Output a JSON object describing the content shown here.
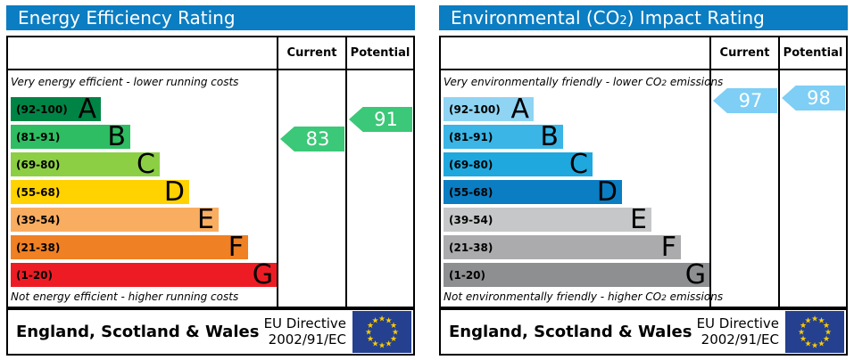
{
  "colors": {
    "header_bg": "#0b7dc2",
    "border": "#000000",
    "flag_navy": "#24408f",
    "star": "#ffcc00"
  },
  "chart_data": [
    {
      "type": "bar",
      "title_parts": {
        "prefix": "Energy Efficiency Rating",
        "sub": "",
        "suffix": ""
      },
      "columns": {
        "current": "Current",
        "potential": "Potential"
      },
      "top_note": {
        "prefix": "Very energy efficient - lower running costs",
        "sub": "",
        "suffix": ""
      },
      "bottom_note": {
        "prefix": "Not energy efficient - higher running costs",
        "sub": "",
        "suffix": ""
      },
      "bands": [
        {
          "letter": "A",
          "range": "(92-100)",
          "min": 92,
          "max": 100,
          "color": "#008445"
        },
        {
          "letter": "B",
          "range": "(81-91)",
          "min": 81,
          "max": 91,
          "color": "#2ebd62"
        },
        {
          "letter": "C",
          "range": "(69-80)",
          "min": 69,
          "max": 80,
          "color": "#8ccf44"
        },
        {
          "letter": "D",
          "range": "(55-68)",
          "min": 55,
          "max": 68,
          "color": "#ffd200"
        },
        {
          "letter": "E",
          "range": "(39-54)",
          "min": 39,
          "max": 54,
          "color": "#f9ad60"
        },
        {
          "letter": "F",
          "range": "(21-38)",
          "min": 21,
          "max": 38,
          "color": "#ef8023"
        },
        {
          "letter": "G",
          "range": "(1-20)",
          "min": 1,
          "max": 20,
          "color": "#ed1c24"
        }
      ],
      "current": 83,
      "potential": 91,
      "arrow_color": "#3bc878",
      "footer": {
        "region": "England, Scotland & Wales",
        "directive1": "EU Directive",
        "directive2": "2002/91/EC"
      }
    },
    {
      "type": "bar",
      "title_parts": {
        "prefix": "Environmental (CO",
        "sub": "2",
        "suffix": ") Impact Rating"
      },
      "columns": {
        "current": "Current",
        "potential": "Potential"
      },
      "top_note": {
        "prefix": "Very environmentally friendly - lower CO",
        "sub": "2",
        "suffix": " emissions"
      },
      "bottom_note": {
        "prefix": "Not environmentally friendly - higher CO",
        "sub": "2",
        "suffix": " emissions"
      },
      "bands": [
        {
          "letter": "A",
          "range": "(92-100)",
          "min": 92,
          "max": 100,
          "color": "#8fd4f3"
        },
        {
          "letter": "B",
          "range": "(81-91)",
          "min": 81,
          "max": 91,
          "color": "#3ab5e6"
        },
        {
          "letter": "C",
          "range": "(69-80)",
          "min": 69,
          "max": 80,
          "color": "#1fa8de"
        },
        {
          "letter": "D",
          "range": "(55-68)",
          "min": 55,
          "max": 68,
          "color": "#0b7dc2"
        },
        {
          "letter": "E",
          "range": "(39-54)",
          "min": 39,
          "max": 54,
          "color": "#c6c7c9"
        },
        {
          "letter": "F",
          "range": "(21-38)",
          "min": 21,
          "max": 38,
          "color": "#ababad"
        },
        {
          "letter": "G",
          "range": "(1-20)",
          "min": 1,
          "max": 20,
          "color": "#8e8f91"
        }
      ],
      "current": 97,
      "potential": 98,
      "arrow_color": "#7ecef5",
      "footer": {
        "region": "England, Scotland & Wales",
        "directive1": "EU Directive",
        "directive2": "2002/91/EC"
      }
    }
  ]
}
